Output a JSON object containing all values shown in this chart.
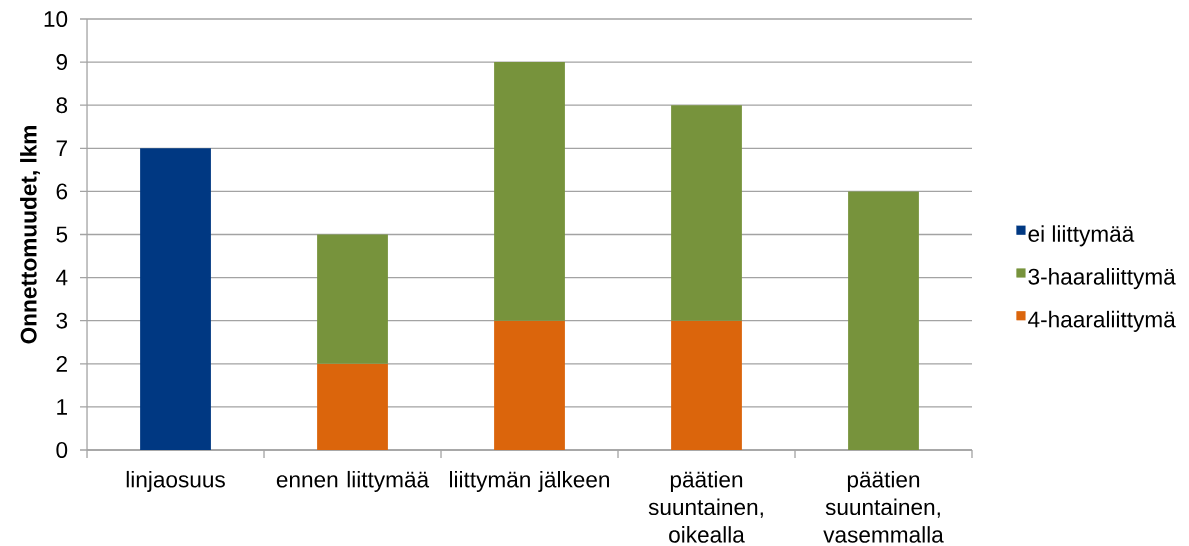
{
  "chart_data": {
    "type": "bar",
    "stacked": true,
    "ylabel": "Onnettomuudet, lkm",
    "categories": [
      "linjaosuus",
      "ennen liittymää",
      "liittymän jälkeen",
      "päätien suuntainen, oikealla",
      "päätien suuntainen, vasemmalla"
    ],
    "series": [
      {
        "name": "4-haaraliittymä",
        "color": "#db650c",
        "values": [
          null,
          2,
          3,
          3,
          null
        ]
      },
      {
        "name": "3-haaraliittymä",
        "color": "#77933c",
        "values": [
          null,
          3,
          6,
          5,
          6
        ]
      },
      {
        "name": "ei liittymää",
        "color": "#003882",
        "values": [
          7,
          null,
          null,
          null,
          null
        ]
      }
    ],
    "ylim": [
      0,
      10
    ],
    "yticks": [
      0,
      1,
      2,
      3,
      4,
      5,
      6,
      7,
      8,
      9,
      10
    ],
    "grid": "y",
    "legend": "right"
  }
}
